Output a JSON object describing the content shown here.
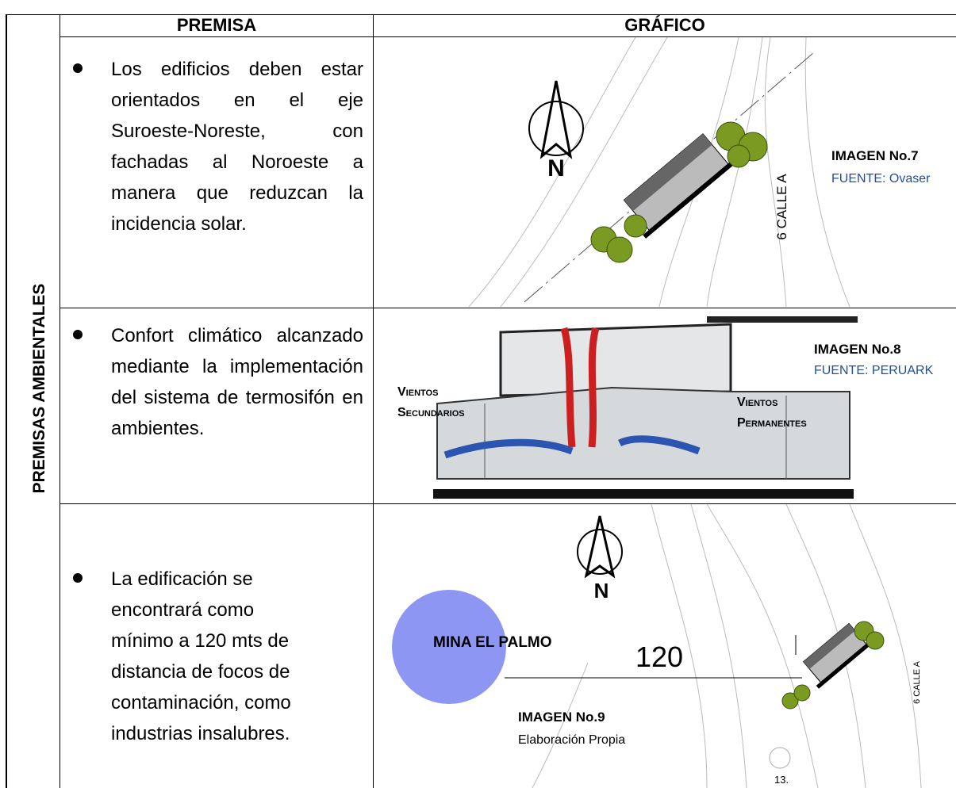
{
  "table": {
    "side_label": "PREMISAS AMBIENTALES",
    "headers": [
      "PREMISA",
      "GRÁFICO"
    ],
    "rows": [
      {
        "premise": "Los edificios deben estar orientados en el eje Suroeste-Noreste, con fachadas al Noroeste a manera que reduzcan la incidencia solar.",
        "figure": {
          "street": "6 CALLE A",
          "caption": "IMAGEN No.7",
          "source": "FUENTE: Ovaser"
        }
      },
      {
        "premise": "Confort climático alcanzado mediante la implementación del sistema de termosifón en ambientes.",
        "figure": {
          "caption": "IMAGEN No.8",
          "source": "FUENTE: PERUARK",
          "wind_secondary": [
            "Vientos",
            "Secundarios"
          ],
          "wind_permanent": [
            "Vientos",
            "Permanentes"
          ]
        }
      },
      {
        "premise": "La edificación se encontrará como mínimo a 120 mts de distancia de focos de contaminación, como industrias insalubres.",
        "figure": {
          "site": "MINA EL PALMO",
          "distance": "120",
          "street": "6 CALLE A",
          "caption": "IMAGEN No.9",
          "source": "Elaboración Propia",
          "lot": "13."
        }
      }
    ]
  }
}
